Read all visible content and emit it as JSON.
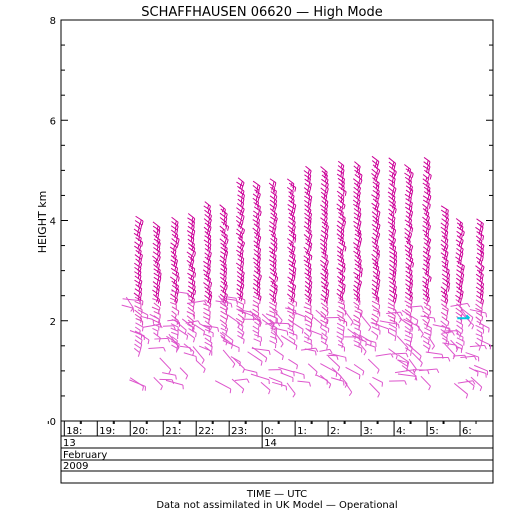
{
  "chart_data": {
    "type": "wind-barb time-height profile",
    "title": "SCHAFFHAUSEN 06620 — High Mode",
    "ylabel": "HEIGHT km",
    "xlabel": "TIME — UTC",
    "footer": "Data not assimilated in UK Model — Operational",
    "ylim": [
      0,
      8
    ],
    "yticks": [
      0,
      2,
      4,
      6,
      8
    ],
    "time_labels": [
      {
        "hour": 18,
        "label": "18:"
      },
      {
        "hour": 19,
        "label": "19:"
      },
      {
        "hour": 20,
        "label": "20:"
      },
      {
        "hour": 21,
        "label": "21:"
      },
      {
        "hour": 22,
        "label": "22:"
      },
      {
        "hour": 23,
        "label": "23:"
      },
      {
        "hour": 24,
        "label": "0:"
      },
      {
        "hour": 25,
        "label": "1:"
      },
      {
        "hour": 26,
        "label": "2:"
      },
      {
        "hour": 27,
        "label": "3:"
      },
      {
        "hour": 28,
        "label": "4:"
      },
      {
        "hour": 29,
        "label": "5:"
      },
      {
        "hour": 30,
        "label": "6:"
      }
    ],
    "xlim_hours": [
      17.9,
      31.0
    ],
    "days": [
      {
        "hour": 17.9,
        "label": "13"
      },
      {
        "hour": 24,
        "label": "14"
      }
    ],
    "month": "February",
    "year": "2009",
    "colors": {
      "upper_barbs": "#cc0099",
      "mid_barbs": "#dd44bb",
      "lower_barbs": "#dd55cc",
      "marker": "#00c8e0"
    },
    "profiles": [
      {
        "hour": 20.2,
        "top_km": 4.1
      },
      {
        "hour": 20.75,
        "top_km": 4.0
      },
      {
        "hour": 21.3,
        "top_km": 4.1
      },
      {
        "hour": 21.8,
        "top_km": 4.2
      },
      {
        "hour": 22.3,
        "top_km": 4.4
      },
      {
        "hour": 22.8,
        "top_km": 4.4
      },
      {
        "hour": 23.3,
        "top_km": 4.9
      },
      {
        "hour": 23.8,
        "top_km": 4.8
      },
      {
        "hour": 24.3,
        "top_km": 4.9
      },
      {
        "hour": 24.85,
        "top_km": 4.9
      },
      {
        "hour": 25.35,
        "top_km": 5.1
      },
      {
        "hour": 25.85,
        "top_km": 5.1
      },
      {
        "hour": 26.35,
        "top_km": 5.2
      },
      {
        "hour": 26.85,
        "top_km": 5.2
      },
      {
        "hour": 27.4,
        "top_km": 5.3
      },
      {
        "hour": 27.9,
        "top_km": 5.3
      },
      {
        "hour": 28.4,
        "top_km": 5.2
      },
      {
        "hour": 28.95,
        "top_km": 5.3
      },
      {
        "hour": 29.5,
        "top_km": 4.3
      },
      {
        "hour": 29.95,
        "top_km": 4.1
      },
      {
        "hour": 30.55,
        "top_km": 4.1
      }
    ],
    "lower_region": {
      "hour_start": 19.7,
      "hour_end": 30.7,
      "bottom_km": 0.75,
      "top_km": 2.6
    }
  }
}
